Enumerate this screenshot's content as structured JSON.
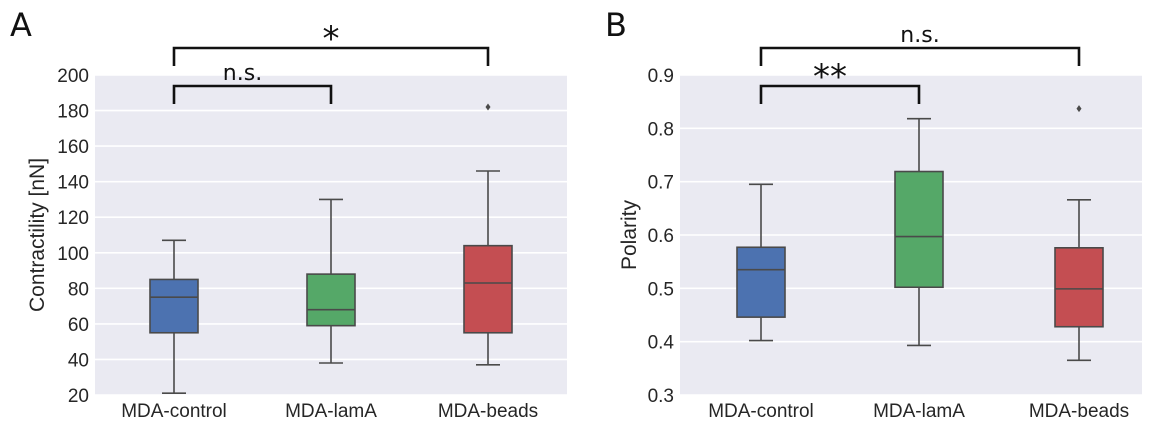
{
  "chart_data": [
    {
      "type": "box",
      "panel_label": "A",
      "ylabel": "Contractility [nN]",
      "ylim": [
        20,
        200
      ],
      "yticks": [
        20,
        40,
        60,
        80,
        100,
        120,
        140,
        160,
        180,
        200
      ],
      "grid": true,
      "categories": [
        "MDA-control",
        "MDA-lamA",
        "MDA-beads"
      ],
      "colors": [
        "#4c72b0",
        "#55a868",
        "#c44e52"
      ],
      "boxes": [
        {
          "whisker_low": 21,
          "q1": 55,
          "median": 75,
          "q3": 85,
          "whisker_high": 107,
          "outliers": []
        },
        {
          "whisker_low": 38,
          "q1": 59,
          "median": 68,
          "q3": 88,
          "whisker_high": 130,
          "outliers": []
        },
        {
          "whisker_low": 37,
          "q1": 55,
          "median": 83,
          "q3": 104,
          "whisker_high": 146,
          "outliers": [
            182
          ]
        }
      ],
      "annotations": [
        {
          "from": 0,
          "to": 2,
          "level": 2,
          "text": "*"
        },
        {
          "from": 0,
          "to": 1,
          "level": 1,
          "text": "n.s."
        }
      ]
    },
    {
      "type": "box",
      "panel_label": "B",
      "ylabel": "Polarity",
      "ylim": [
        0.3,
        0.9
      ],
      "yticks": [
        0.3,
        0.4,
        0.5,
        0.6,
        0.7,
        0.8,
        0.9
      ],
      "grid": true,
      "categories": [
        "MDA-control",
        "MDA-lamA",
        "MDA-beads"
      ],
      "colors": [
        "#4c72b0",
        "#55a868",
        "#c44e52"
      ],
      "boxes": [
        {
          "whisker_low": 0.402,
          "q1": 0.446,
          "median": 0.535,
          "q3": 0.577,
          "whisker_high": 0.695,
          "outliers": []
        },
        {
          "whisker_low": 0.393,
          "q1": 0.502,
          "median": 0.597,
          "q3": 0.719,
          "whisker_high": 0.818,
          "outliers": []
        },
        {
          "whisker_low": 0.365,
          "q1": 0.428,
          "median": 0.499,
          "q3": 0.576,
          "whisker_high": 0.666,
          "outliers": [
            0.837
          ]
        }
      ],
      "annotations": [
        {
          "from": 0,
          "to": 2,
          "level": 2,
          "text": "n.s."
        },
        {
          "from": 0,
          "to": 1,
          "level": 1,
          "text": "**"
        }
      ]
    }
  ]
}
